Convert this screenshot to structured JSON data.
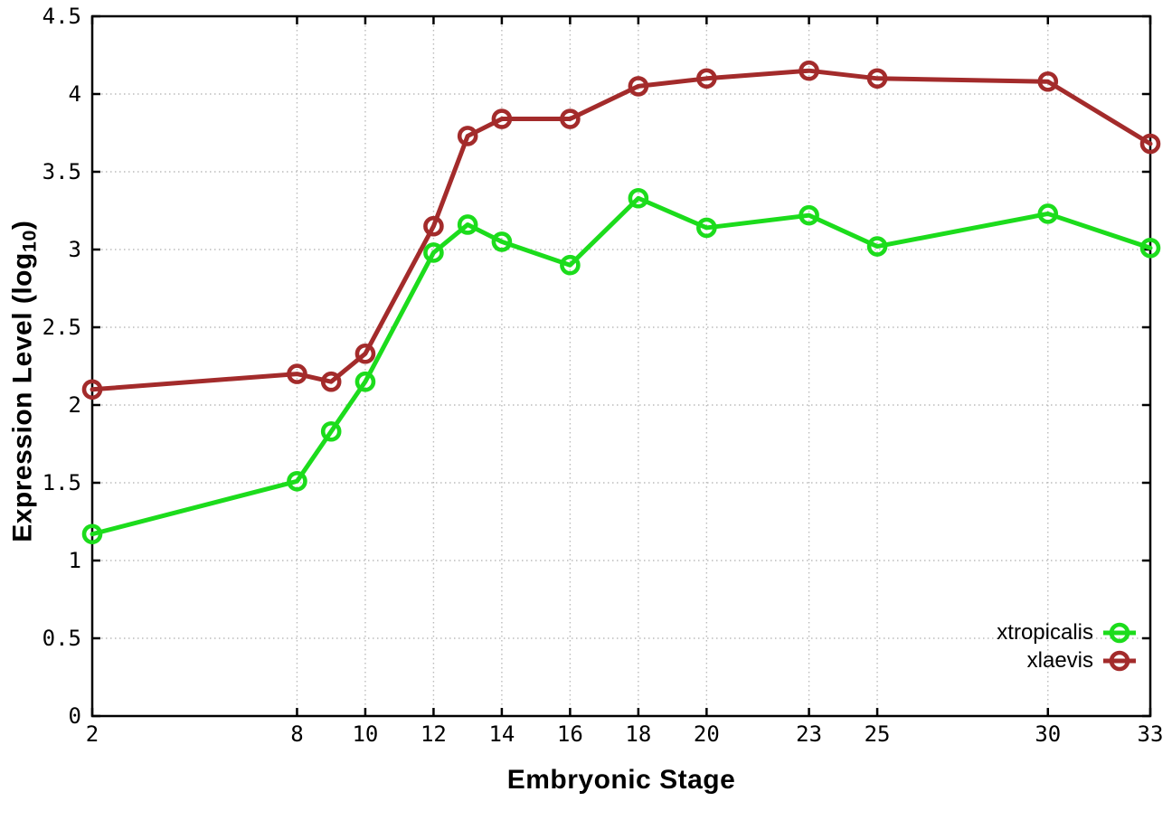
{
  "figure": {
    "background": "#ffffff",
    "border_color": "#000000",
    "grid_color": "#bbbbbb",
    "text_color": "#000000"
  },
  "chart_data": {
    "type": "line",
    "title": "",
    "xlabel": "Embryonic Stage",
    "ylabel": "Expression Level (log10)",
    "ylabel_parts": {
      "main": "Expression Level (log",
      "sub": "10",
      "close": ")"
    },
    "xlim": [
      2,
      33
    ],
    "ylim": [
      0,
      4.5
    ],
    "x_ticks": [
      2,
      8,
      10,
      12,
      14,
      16,
      18,
      20,
      23,
      25,
      30,
      33
    ],
    "y_ticks": [
      0,
      0.5,
      1,
      1.5,
      2,
      2.5,
      3,
      3.5,
      4,
      4.5
    ],
    "grid": true,
    "marker": "open-circle",
    "legend_position": "bottom-right",
    "x": [
      2,
      8,
      9,
      10,
      12,
      13,
      14,
      16,
      18,
      20,
      23,
      25,
      30,
      33
    ],
    "series": [
      {
        "name": "xtropicalis",
        "color": "#1cdc1c",
        "values": [
          1.17,
          1.51,
          1.83,
          2.15,
          2.98,
          3.16,
          3.05,
          2.9,
          3.33,
          3.14,
          3.22,
          3.02,
          3.23,
          3.01
        ]
      },
      {
        "name": "xlaevis",
        "color": "#a32b2b",
        "values": [
          2.1,
          2.2,
          2.15,
          2.33,
          3.15,
          3.73,
          3.84,
          3.84,
          4.05,
          4.1,
          4.15,
          4.1,
          4.08,
          3.68
        ]
      }
    ]
  }
}
